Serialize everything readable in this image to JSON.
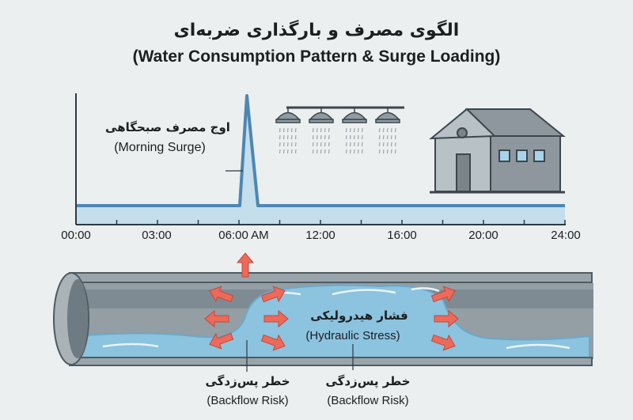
{
  "title": {
    "fa": "الگوی مصرف و بارگذاری ضربه‌ای",
    "en": "(Water Consumption Pattern & Surge Loading)"
  },
  "timeline": {
    "ticks": [
      "00:00",
      "03:00",
      "06:00 AM",
      "12:00",
      "16:00",
      "20:00",
      "24:00"
    ],
    "peak_label_fa": "اوج مصرف صبحگاهی",
    "peak_label_en": "(Morning Surge)"
  },
  "icons": [
    "sprinkler-icon",
    "sprinkler-icon",
    "sprinkler-icon",
    "sprinkler-icon",
    "building-icon"
  ],
  "pipe": {
    "stress_fa": "فشار هیدرولیکی",
    "stress_en": "(Hydraulic Stress)",
    "risk1_fa": "خطر پس‌زدگی",
    "risk1_en": "(Backflow Risk)",
    "risk2_fa": "خطر پس‌زدگی",
    "risk2_en": "(Backflow Risk)"
  },
  "colors": {
    "line": "#4d87b3",
    "fill": "#bcd9ea",
    "water": "#8cc3df",
    "pipe": "#7d8a92",
    "arrow": "#ec6a5a"
  }
}
